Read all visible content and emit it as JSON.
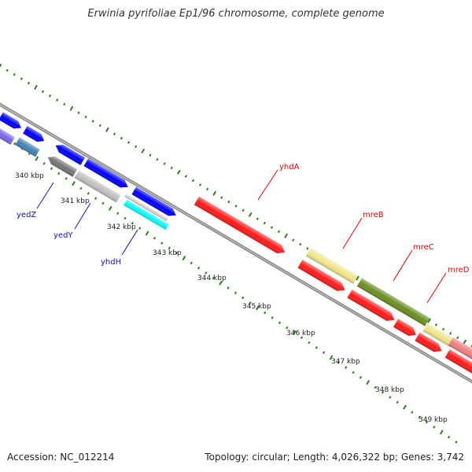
{
  "title": "Erwinia pyrifoliae Ep1/96 chromosome, complete genome",
  "footer": {
    "accession": "Accession: NC_012214",
    "topology": "Topology: circular; Length: 4,026,322 bp; Genes: 3,742"
  },
  "colors": {
    "backbone": "#888888",
    "gc_ticks": "#2e7d1f",
    "label_red": "#e00000",
    "label_blue": "#1010b0"
  },
  "scale_labels": [
    "340 kbp",
    "341 kbp",
    "342 kbp",
    "343 kbp",
    "344 kbp",
    "345 kbp",
    "346 kbp",
    "347 kbp",
    "348 kbp",
    "349 kbp"
  ],
  "genes": [
    {
      "label": "yhdA",
      "color": "#ff1a1a"
    },
    {
      "label": "mreB",
      "color": "#f0e68c"
    },
    {
      "label": "mreC",
      "color": "#6b8e23"
    },
    {
      "label": "mreD",
      "color": "#ff1a1a"
    },
    {
      "label": "yedZ",
      "color": "#777777"
    },
    {
      "label": "yedY",
      "color": "#c0c0c0"
    },
    {
      "label": "yhdH",
      "color": "#00ffff"
    }
  ],
  "unlabeled_feature_colors": [
    "#0000ff",
    "#7b68ee",
    "#4682b4",
    "#ff1a1a",
    "#f08080"
  ]
}
